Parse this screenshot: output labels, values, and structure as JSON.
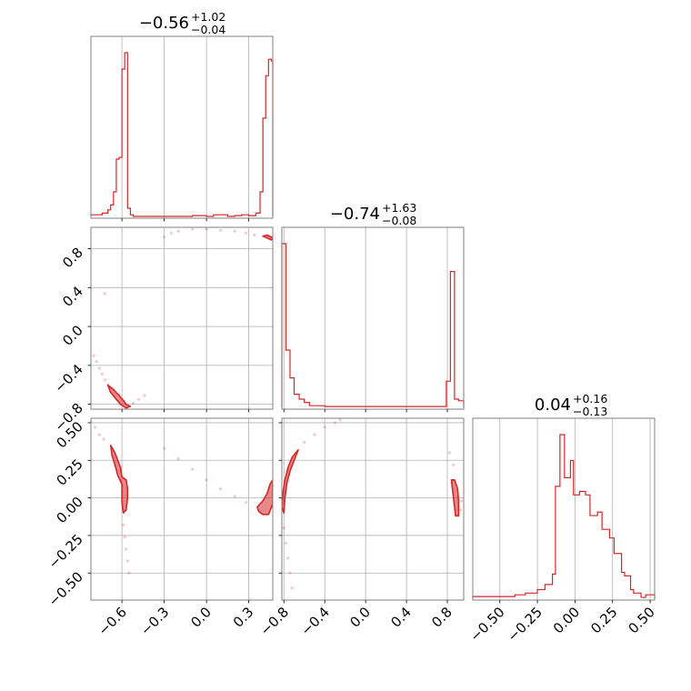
{
  "chart_data": {
    "type": "corner",
    "color": "#d62728",
    "grid": true,
    "parameters": [
      {
        "title": {
          "value": "−0.56",
          "plus": "+1.02",
          "minus": "−0.04"
        },
        "range": [
          -0.82,
          0.47
        ],
        "ticks": [
          {
            "v": -0.6,
            "label": "−0.6"
          },
          {
            "v": -0.3,
            "label": "−0.3"
          },
          {
            "v": 0.0,
            "label": "0.0"
          },
          {
            "v": 0.3,
            "label": "0.3"
          }
        ],
        "histogram": {
          "bin_edges": [
            -0.82,
            -0.78,
            -0.74,
            -0.7,
            -0.68,
            -0.66,
            -0.64,
            -0.62,
            -0.6,
            -0.58,
            -0.56,
            -0.54,
            -0.52,
            -0.48,
            -0.4,
            -0.3,
            -0.2,
            -0.1,
            0.0,
            0.05,
            0.15,
            0.2,
            0.25,
            0.3,
            0.35,
            0.38,
            0.4,
            0.42,
            0.44,
            0.46,
            0.47
          ],
          "counts": [
            1,
            1,
            2,
            4,
            7,
            15,
            35,
            36,
            90,
            100,
            5,
            1,
            0,
            0,
            0,
            0,
            0,
            0.5,
            0,
            1,
            0,
            0.5,
            1,
            0.5,
            2,
            15,
            60,
            86,
            96,
            95
          ]
        }
      },
      {
        "title": {
          "value": "−0.74",
          "plus": "+1.63",
          "minus": "−0.08"
        },
        "range": [
          -0.82,
          0.96
        ],
        "ticks": [
          {
            "v": -0.8,
            "label": "−0.8"
          },
          {
            "v": -0.4,
            "label": "−0.4"
          },
          {
            "v": 0.0,
            "label": "0.0"
          },
          {
            "v": 0.4,
            "label": "0.4"
          },
          {
            "v": 0.8,
            "label": "0.8"
          }
        ],
        "histogram": {
          "bin_edges": [
            -0.82,
            -0.78,
            -0.74,
            -0.7,
            -0.65,
            -0.6,
            -0.55,
            -0.4,
            0.0,
            0.4,
            0.79,
            0.83,
            0.87,
            0.91,
            0.96
          ],
          "counts": [
            100,
            35,
            18,
            8,
            5,
            3,
            1,
            0.5,
            0.5,
            0.5,
            16,
            83,
            5,
            4
          ]
        }
      },
      {
        "title": {
          "value": "0.04",
          "plus": "+0.16",
          "minus": "−0.13"
        },
        "range": [
          -0.68,
          0.53
        ],
        "ticks": [
          {
            "v": -0.5,
            "label": "−0.50"
          },
          {
            "v": -0.25,
            "label": "−0.25"
          },
          {
            "v": 0.0,
            "label": "0.00"
          },
          {
            "v": 0.25,
            "label": "0.25"
          },
          {
            "v": 0.5,
            "label": "0.50"
          }
        ],
        "histogram": {
          "bin_edges": [
            -0.68,
            -0.4,
            -0.33,
            -0.25,
            -0.2,
            -0.15,
            -0.13,
            -0.1,
            -0.07,
            -0.03,
            -0.01,
            0.03,
            0.07,
            0.1,
            0.15,
            0.18,
            0.23,
            0.26,
            0.31,
            0.33,
            0.37,
            0.39,
            0.44,
            0.47,
            0.53
          ],
          "counts": [
            1,
            2,
            3,
            5,
            8,
            14,
            65,
            95,
            70,
            80,
            60,
            62,
            60,
            48,
            50,
            40,
            35,
            26,
            15,
            13,
            5,
            3,
            0.5,
            2
          ]
        }
      }
    ],
    "pairs": [
      {
        "x_param": 0,
        "y_param": 1,
        "y_range": [
          -0.85,
          1.02
        ],
        "y_ticks": [
          {
            "v": -0.8,
            "label": "−0.8"
          },
          {
            "v": -0.4,
            "label": "−0.4"
          },
          {
            "v": 0.0,
            "label": "0.0"
          },
          {
            "v": 0.4,
            "label": "0.4"
          },
          {
            "v": 0.8,
            "label": "0.8"
          }
        ],
        "contours": [
          [
            [
              -0.7,
              -0.6
            ],
            [
              -0.66,
              -0.65
            ],
            [
              -0.62,
              -0.71
            ],
            [
              -0.59,
              -0.76
            ],
            [
              -0.57,
              -0.8
            ],
            [
              -0.54,
              -0.82
            ],
            [
              -0.57,
              -0.84
            ],
            [
              -0.61,
              -0.8
            ],
            [
              -0.64,
              -0.75
            ],
            [
              -0.68,
              -0.68
            ]
          ],
          [
            [
              0.4,
              0.93
            ],
            [
              0.43,
              0.91
            ],
            [
              0.46,
              0.89
            ],
            [
              0.47,
              0.9
            ],
            [
              0.46,
              0.92
            ],
            [
              0.43,
              0.94
            ]
          ]
        ],
        "samples": [
          [
            -0.8,
            -0.3
          ],
          [
            -0.78,
            -0.36
          ],
          [
            -0.76,
            -0.43
          ],
          [
            -0.74,
            -0.49
          ],
          [
            -0.72,
            -0.55
          ],
          [
            -0.66,
            -0.64
          ],
          [
            -0.62,
            -0.7
          ],
          [
            -0.52,
            -0.79
          ],
          [
            -0.48,
            -0.75
          ],
          [
            -0.44,
            -0.71
          ],
          [
            -0.72,
            0.34
          ],
          [
            -0.3,
            0.92
          ],
          [
            -0.25,
            0.96
          ],
          [
            -0.2,
            0.98
          ],
          [
            -0.1,
            1.0
          ],
          [
            0.0,
            1.0
          ],
          [
            0.1,
            0.99
          ],
          [
            0.2,
            0.98
          ],
          [
            0.28,
            0.96
          ],
          [
            0.34,
            0.94
          ]
        ]
      },
      {
        "x_param": 0,
        "y_param": 2,
        "contours": [
          [
            [
              -0.68,
              0.35
            ],
            [
              -0.65,
              0.3
            ],
            [
              -0.63,
              0.25
            ],
            [
              -0.61,
              0.2
            ],
            [
              -0.6,
              0.14
            ],
            [
              -0.57,
              0.12
            ],
            [
              -0.56,
              0.06
            ],
            [
              -0.56,
              0.0
            ],
            [
              -0.57,
              -0.08
            ],
            [
              -0.59,
              -0.1
            ],
            [
              -0.6,
              -0.03
            ],
            [
              -0.6,
              0.09
            ],
            [
              -0.63,
              0.15
            ],
            [
              -0.65,
              0.22
            ],
            [
              -0.67,
              0.28
            ]
          ],
          [
            [
              0.36,
              -0.06
            ],
            [
              0.4,
              -0.02
            ],
            [
              0.43,
              0.03
            ],
            [
              0.45,
              0.09
            ],
            [
              0.47,
              0.12
            ],
            [
              0.47,
              -0.04
            ],
            [
              0.44,
              -0.11
            ],
            [
              0.4,
              -0.11
            ],
            [
              0.37,
              -0.09
            ]
          ]
        ],
        "samples": [
          [
            -0.82,
            0.51
          ],
          [
            -0.79,
            0.47
          ],
          [
            -0.76,
            0.42
          ],
          [
            -0.73,
            0.39
          ],
          [
            -0.59,
            -0.18
          ],
          [
            -0.58,
            -0.26
          ],
          [
            -0.57,
            -0.34
          ],
          [
            -0.56,
            -0.42
          ],
          [
            -0.55,
            -0.5
          ],
          [
            -0.3,
            0.33
          ],
          [
            -0.2,
            0.26
          ],
          [
            -0.1,
            0.19
          ],
          [
            0.0,
            0.12
          ],
          [
            0.1,
            0.06
          ],
          [
            0.2,
            0.01
          ],
          [
            0.28,
            -0.03
          ]
        ]
      },
      {
        "x_param": 1,
        "y_param": 2,
        "contours": [
          [
            [
              -0.66,
              0.32
            ],
            [
              -0.72,
              0.27
            ],
            [
              -0.76,
              0.2
            ],
            [
              -0.79,
              0.12
            ],
            [
              -0.81,
              0.03
            ],
            [
              -0.82,
              -0.06
            ],
            [
              -0.8,
              -0.1
            ],
            [
              -0.79,
              0.0
            ],
            [
              -0.77,
              0.1
            ],
            [
              -0.74,
              0.18
            ],
            [
              -0.7,
              0.25
            ]
          ],
          [
            [
              0.84,
              0.12
            ],
            [
              0.85,
              0.06
            ],
            [
              0.86,
              0.0
            ],
            [
              0.87,
              -0.06
            ],
            [
              0.88,
              -0.12
            ],
            [
              0.91,
              -0.12
            ],
            [
              0.91,
              -0.02
            ],
            [
              0.9,
              0.06
            ],
            [
              0.87,
              0.12
            ]
          ]
        ],
        "samples": [
          [
            -0.6,
            0.37
          ],
          [
            -0.5,
            0.42
          ],
          [
            -0.4,
            0.47
          ],
          [
            -0.3,
            0.5
          ],
          [
            -0.25,
            0.52
          ],
          [
            -0.8,
            -0.2
          ],
          [
            -0.78,
            -0.3
          ],
          [
            -0.76,
            -0.4
          ],
          [
            -0.74,
            -0.5
          ],
          [
            -0.72,
            -0.6
          ],
          [
            0.82,
            0.3
          ],
          [
            0.86,
            0.22
          ],
          [
            0.93,
            -0.08
          ],
          [
            0.94,
            -0.02
          ]
        ]
      }
    ]
  }
}
